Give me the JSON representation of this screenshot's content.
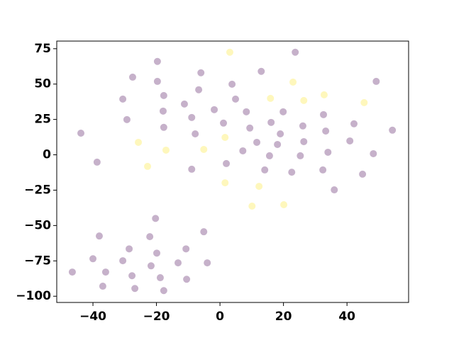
{
  "chart_data": {
    "type": "scatter",
    "xlim": [
      -51.4,
      59.4
    ],
    "ylim": [
      -104.4,
      80.4
    ],
    "xticks": [
      {
        "value": -40,
        "label": "−40"
      },
      {
        "value": -20,
        "label": "−20"
      },
      0,
      20,
      40
    ],
    "yticks": [
      {
        "value": -100,
        "label": "−100"
      },
      {
        "value": -75,
        "label": "−75"
      },
      {
        "value": -50,
        "label": "−50"
      },
      {
        "value": -25,
        "label": "−25"
      },
      0,
      25,
      50,
      75
    ],
    "opacity": 0.3,
    "series": [
      {
        "color": "#440154",
        "x": [
          -43.8,
          -38.7,
          -30.6,
          -29.3,
          -27.5,
          -19.7,
          -19.7,
          -17.7,
          -17.9,
          -17.7,
          -11.2,
          -8.9,
          -7.8,
          -8.9,
          -6.7,
          -6.0,
          -1.8,
          1.1,
          2.0,
          3.8,
          4.9,
          7.2,
          8.3,
          9.4,
          11.6,
          13.0,
          14.1,
          15.6,
          16.1,
          18.1,
          19.0,
          19.9,
          22.6,
          23.7,
          25.3,
          26.1,
          26.4,
          32.4,
          32.6,
          33.3,
          34.0,
          36.0,
          40.9,
          42.2,
          44.9,
          48.3,
          49.2,
          54.3,
          -20.3,
          -38.0,
          -22.1,
          -5.1,
          -28.6,
          -10.7,
          -19.9,
          -40.0,
          -30.6,
          -13.2,
          -4.0,
          -21.7,
          -36.0,
          -46.5,
          -27.7,
          -18.8,
          -10.5,
          -36.9,
          -26.8,
          -17.7
        ],
        "values": [
          15.3,
          -5.2,
          39.4,
          24.9,
          54.9,
          66.0,
          51.9,
          41.9,
          30.9,
          19.4,
          35.9,
          26.4,
          14.8,
          -10.2,
          46.0,
          58.0,
          31.9,
          22.4,
          -6.2,
          49.9,
          39.4,
          2.8,
          30.4,
          18.9,
          8.8,
          59.0,
          -10.7,
          -0.7,
          22.9,
          7.3,
          14.8,
          30.4,
          -12.3,
          72.5,
          -0.7,
          20.4,
          9.3,
          -10.7,
          28.4,
          16.8,
          1.8,
          -24.8,
          9.8,
          21.9,
          -13.7,
          0.8,
          51.9,
          17.4,
          -45.0,
          -57.4,
          -57.9,
          -54.4,
          -66.5,
          -66.5,
          -69.5,
          -73.5,
          -74.9,
          -76.4,
          -76.4,
          -78.5,
          -82.9,
          -82.9,
          -85.5,
          -86.9,
          -88.0,
          -92.9,
          -94.5,
          -96.0
        ]
      },
      {
        "color": "#fde725",
        "x": [
          3.1,
          23.0,
          32.8,
          15.9,
          26.4,
          45.4,
          -25.7,
          -17.0,
          -5.1,
          1.6,
          -22.8,
          1.6,
          12.3,
          10.1,
          20.1
        ],
        "values": [
          72.5,
          51.4,
          42.4,
          39.9,
          38.4,
          36.9,
          8.8,
          3.3,
          3.8,
          12.3,
          -8.2,
          -19.8,
          -22.3,
          -36.3,
          -35.3
        ]
      }
    ]
  }
}
